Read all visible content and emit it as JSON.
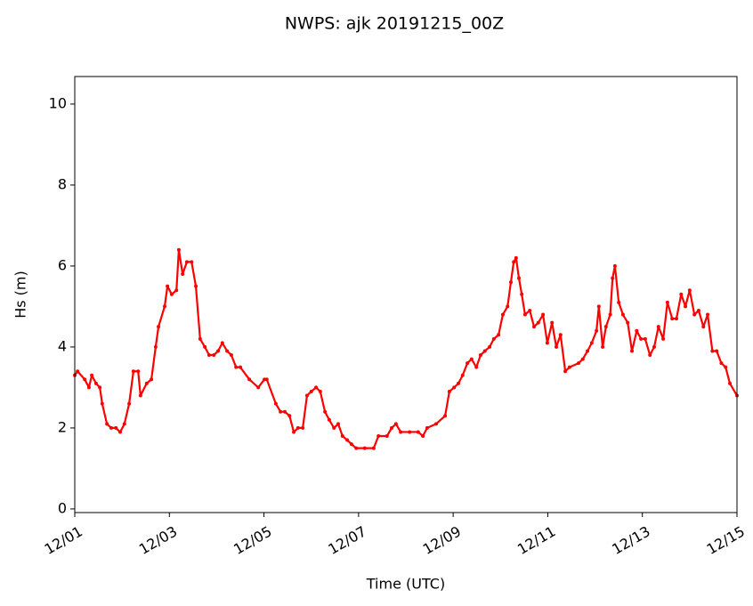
{
  "chart_data": {
    "type": "line",
    "title": "NWPS: ajk 20191215_00Z",
    "x_label": "Time (UTC)",
    "y_label": "Hs (m)",
    "x": [
      0,
      0.06,
      0.21,
      0.3,
      0.36,
      0.45,
      0.53,
      0.58,
      0.68,
      0.77,
      0.87,
      0.96,
      1.05,
      1.15,
      1.24,
      1.34,
      1.39,
      1.52,
      1.62,
      1.71,
      1.77,
      1.9,
      1.96,
      2.05,
      2.15,
      2.2,
      2.28,
      2.37,
      2.47,
      2.56,
      2.65,
      2.75,
      2.84,
      2.94,
      3.03,
      3.12,
      3.22,
      3.31,
      3.41,
      3.5,
      3.69,
      3.88,
      4.01,
      4.06,
      4.25,
      4.35,
      4.44,
      4.54,
      4.63,
      4.72,
      4.82,
      4.91,
      5.0,
      5.1,
      5.19,
      5.29,
      5.38,
      5.48,
      5.57,
      5.66,
      5.76,
      5.85,
      5.95,
      6.13,
      6.32,
      6.42,
      6.6,
      6.7,
      6.79,
      6.89,
      7.08,
      7.26,
      7.36,
      7.45,
      7.64,
      7.83,
      7.92,
      8.02,
      8.11,
      8.2,
      8.3,
      8.39,
      8.49,
      8.58,
      8.67,
      8.77,
      8.86,
      8.96,
      9.05,
      9.15,
      9.22,
      9.28,
      9.33,
      9.39,
      9.45,
      9.52,
      9.62,
      9.71,
      9.8,
      9.9,
      9.99,
      10.09,
      10.18,
      10.27,
      10.37,
      10.46,
      10.65,
      10.74,
      10.84,
      10.93,
      11.03,
      11.08,
      11.16,
      11.23,
      11.32,
      11.37,
      11.42,
      11.5,
      11.59,
      11.69,
      11.78,
      11.88,
      11.97,
      12.06,
      12.16,
      12.25,
      12.34,
      12.44,
      12.53,
      12.63,
      12.72,
      12.82,
      12.91,
      13.0,
      13.1,
      13.19,
      13.29,
      13.38,
      13.48,
      13.57,
      13.67,
      13.76,
      13.85,
      14.0
    ],
    "series": [
      {
        "name": "Hs",
        "color": "#ff0000",
        "values": [
          3.3,
          3.4,
          3.2,
          3.0,
          3.3,
          3.1,
          3.0,
          2.6,
          2.1,
          2.0,
          2.0,
          1.9,
          2.1,
          2.6,
          3.4,
          3.4,
          2.8,
          3.1,
          3.2,
          4.0,
          4.5,
          5.0,
          5.5,
          5.3,
          5.4,
          6.4,
          5.8,
          6.1,
          6.1,
          5.5,
          4.2,
          4.0,
          3.8,
          3.8,
          3.9,
          4.1,
          3.9,
          3.8,
          3.5,
          3.5,
          3.2,
          3.0,
          3.2,
          3.2,
          2.6,
          2.4,
          2.4,
          2.3,
          1.9,
          2.0,
          2.0,
          2.8,
          2.9,
          3.0,
          2.9,
          2.4,
          2.2,
          2.0,
          2.1,
          1.8,
          1.7,
          1.6,
          1.5,
          1.5,
          1.5,
          1.8,
          1.8,
          2.0,
          2.1,
          1.9,
          1.9,
          1.9,
          1.8,
          2.0,
          2.1,
          2.3,
          2.9,
          3.0,
          3.1,
          3.3,
          3.6,
          3.7,
          3.5,
          3.8,
          3.9,
          4.0,
          4.2,
          4.3,
          4.8,
          5.0,
          5.6,
          6.1,
          6.2,
          5.7,
          5.3,
          4.8,
          4.9,
          4.5,
          4.6,
          4.8,
          4.1,
          4.6,
          4.0,
          4.3,
          3.4,
          3.5,
          3.6,
          3.7,
          3.9,
          4.1,
          4.4,
          5.0,
          4.0,
          4.5,
          4.8,
          5.7,
          6.0,
          5.1,
          4.8,
          4.6,
          3.9,
          4.4,
          4.2,
          4.2,
          3.8,
          4.0,
          4.5,
          4.2,
          5.1,
          4.7,
          4.7,
          5.3,
          5.0,
          5.4,
          4.8,
          4.9,
          4.5,
          4.8,
          3.9,
          3.9,
          3.6,
          3.5,
          3.1,
          2.8
        ]
      }
    ],
    "xlim": [
      0,
      14
    ],
    "xticks": [
      {
        "value": 0,
        "label": "12/01"
      },
      {
        "value": 2,
        "label": "12/03"
      },
      {
        "value": 4,
        "label": "12/05"
      },
      {
        "value": 6,
        "label": "12/07"
      },
      {
        "value": 8,
        "label": "12/09"
      },
      {
        "value": 10,
        "label": "12/11"
      },
      {
        "value": 12,
        "label": "12/13"
      },
      {
        "value": 14,
        "label": "12/15"
      }
    ],
    "ylim": [
      -0.09,
      10.68
    ],
    "yticks": [
      0,
      2,
      4,
      6,
      8,
      10
    ],
    "grid": false
  }
}
